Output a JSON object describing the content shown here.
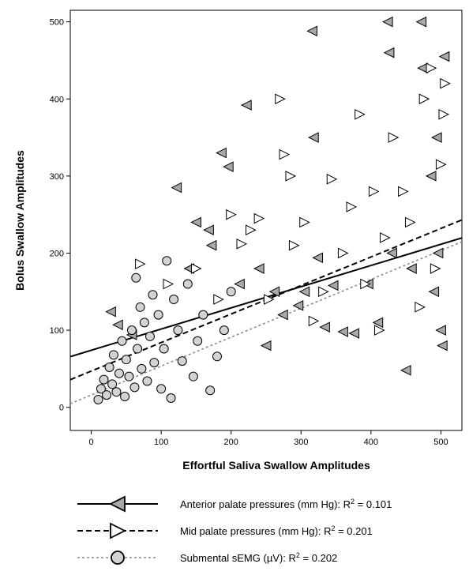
{
  "chart_data": {
    "type": "scatter",
    "xlabel": "Effortful Saliva Swallow Amplitudes",
    "ylabel": "Bolus Swallow Amplitudes",
    "xlim": [
      -30,
      530
    ],
    "ylim": [
      -30,
      515
    ],
    "xticks": [
      0,
      100,
      200,
      300,
      400,
      500
    ],
    "yticks": [
      0,
      100,
      200,
      300,
      400,
      500
    ],
    "grid": false,
    "legend_position": "bottom",
    "series": [
      {
        "name": "Anterior palate pressures (mm Hg)",
        "r2_label": "R",
        "r2_sup": "2",
        "r2_value": " = 0.101",
        "marker": "triangle-left",
        "fill": "#a9a9a9",
        "line_style": "solid",
        "fit": {
          "intercept": 74,
          "slope": 0.275
        },
        "points": [
          [
            28,
            124
          ],
          [
            38,
            107
          ],
          [
            58,
            94
          ],
          [
            122,
            285
          ],
          [
            140,
            180
          ],
          [
            150,
            240
          ],
          [
            168,
            230
          ],
          [
            172,
            210
          ],
          [
            186,
            330
          ],
          [
            196,
            312
          ],
          [
            212,
            160
          ],
          [
            222,
            392
          ],
          [
            240,
            180
          ],
          [
            250,
            80
          ],
          [
            262,
            150
          ],
          [
            274,
            120
          ],
          [
            296,
            132
          ],
          [
            305,
            150
          ],
          [
            316,
            488
          ],
          [
            318,
            350
          ],
          [
            324,
            194
          ],
          [
            334,
            104
          ],
          [
            346,
            158
          ],
          [
            360,
            98
          ],
          [
            376,
            96
          ],
          [
            396,
            160
          ],
          [
            410,
            110
          ],
          [
            424,
            500
          ],
          [
            426,
            460
          ],
          [
            430,
            200
          ],
          [
            450,
            48
          ],
          [
            458,
            180
          ],
          [
            472,
            500
          ],
          [
            474,
            440
          ],
          [
            486,
            300
          ],
          [
            490,
            150
          ],
          [
            494,
            350
          ],
          [
            496,
            200
          ],
          [
            500,
            100
          ],
          [
            502,
            80
          ],
          [
            505,
            455
          ]
        ]
      },
      {
        "name": "Mid palate pressures (mm Hg)",
        "r2_label": "R",
        "r2_sup": "2",
        "r2_value": " = 0.201",
        "marker": "triangle-right",
        "fill": "#ffffff",
        "line_style": "dashed",
        "fit": {
          "intercept": 47,
          "slope": 0.37
        },
        "points": [
          [
            70,
            186
          ],
          [
            110,
            160
          ],
          [
            150,
            180
          ],
          [
            182,
            140
          ],
          [
            200,
            250
          ],
          [
            215,
            212
          ],
          [
            228,
            230
          ],
          [
            240,
            245
          ],
          [
            254,
            140
          ],
          [
            270,
            400
          ],
          [
            276,
            328
          ],
          [
            285,
            300
          ],
          [
            290,
            210
          ],
          [
            305,
            240
          ],
          [
            318,
            112
          ],
          [
            332,
            150
          ],
          [
            344,
            296
          ],
          [
            360,
            200
          ],
          [
            372,
            260
          ],
          [
            384,
            380
          ],
          [
            392,
            160
          ],
          [
            404,
            280
          ],
          [
            412,
            100
          ],
          [
            420,
            220
          ],
          [
            432,
            350
          ],
          [
            446,
            280
          ],
          [
            456,
            240
          ],
          [
            470,
            130
          ],
          [
            476,
            400
          ],
          [
            486,
            440
          ],
          [
            492,
            180
          ],
          [
            500,
            315
          ],
          [
            504,
            380
          ],
          [
            506,
            420
          ]
        ]
      },
      {
        "name": "Submental sEMG (µV)",
        "r2_label": "R",
        "r2_sup": "2",
        "r2_value": " = 0.202",
        "marker": "circle",
        "fill": "#d3d3d3",
        "line_style": "dotted",
        "fit": {
          "intercept": 16,
          "slope": 0.375
        },
        "points": [
          [
            10,
            10
          ],
          [
            14,
            24
          ],
          [
            18,
            36
          ],
          [
            22,
            16
          ],
          [
            26,
            52
          ],
          [
            30,
            30
          ],
          [
            32,
            68
          ],
          [
            36,
            20
          ],
          [
            40,
            44
          ],
          [
            44,
            86
          ],
          [
            48,
            14
          ],
          [
            50,
            62
          ],
          [
            54,
            40
          ],
          [
            58,
            100
          ],
          [
            62,
            26
          ],
          [
            64,
            168
          ],
          [
            66,
            76
          ],
          [
            70,
            130
          ],
          [
            72,
            50
          ],
          [
            76,
            110
          ],
          [
            80,
            34
          ],
          [
            84,
            92
          ],
          [
            88,
            146
          ],
          [
            90,
            58
          ],
          [
            96,
            120
          ],
          [
            100,
            24
          ],
          [
            104,
            76
          ],
          [
            108,
            190
          ],
          [
            114,
            12
          ],
          [
            118,
            140
          ],
          [
            124,
            100
          ],
          [
            130,
            60
          ],
          [
            138,
            160
          ],
          [
            146,
            40
          ],
          [
            152,
            86
          ],
          [
            160,
            120
          ],
          [
            170,
            22
          ],
          [
            180,
            66
          ],
          [
            190,
            100
          ],
          [
            200,
            150
          ]
        ]
      }
    ]
  }
}
